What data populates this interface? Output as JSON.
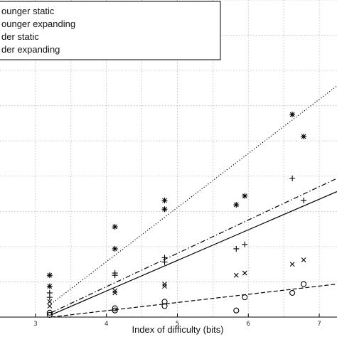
{
  "chart_data": {
    "type": "scatter",
    "title": "",
    "xlabel": "Index of difficulty (bits)",
    "ylabel": "",
    "xlim": [
      2.5,
      7.25
    ],
    "ylim": [
      0,
      7.2
    ],
    "x_ticks": [
      "3",
      "4",
      "5",
      "6",
      "7"
    ],
    "grid": true,
    "legend_placement": "top-left",
    "legend": [
      "ounger static",
      "ounger expanding",
      "der static",
      "der expanding"
    ],
    "series": [
      {
        "name": "ounger static",
        "marker": "x",
        "line_style": "solid",
        "points": [
          [
            3.2,
            0.25
          ],
          [
            3.2,
            0.35
          ],
          [
            4.12,
            0.55
          ],
          [
            4.12,
            0.6
          ],
          [
            4.82,
            0.7
          ],
          [
            4.82,
            0.75
          ],
          [
            5.83,
            0.95
          ],
          [
            5.95,
            1.0
          ],
          [
            6.62,
            1.2
          ],
          [
            6.78,
            1.3
          ]
        ],
        "fit": [
          [
            3.22,
            0.05
          ],
          [
            7.25,
            2.85
          ]
        ]
      },
      {
        "name": "ounger expanding",
        "marker": "plus",
        "line_style": "dashdot",
        "points": [
          [
            3.2,
            0.45
          ],
          [
            3.2,
            0.55
          ],
          [
            4.12,
            0.95
          ],
          [
            4.12,
            1.0
          ],
          [
            4.82,
            1.25
          ],
          [
            4.82,
            1.35
          ],
          [
            5.83,
            1.55
          ],
          [
            5.95,
            1.65
          ],
          [
            6.62,
            3.15
          ],
          [
            6.78,
            2.65
          ]
        ],
        "fit": [
          [
            3.22,
            0.1
          ],
          [
            7.25,
            3.15
          ]
        ]
      },
      {
        "name": "der static",
        "marker": "circle",
        "line_style": "dashed",
        "points": [
          [
            3.2,
            0.05
          ],
          [
            3.2,
            0.1
          ],
          [
            4.12,
            0.15
          ],
          [
            4.12,
            0.2
          ],
          [
            4.82,
            0.25
          ],
          [
            4.82,
            0.35
          ],
          [
            5.83,
            0.15
          ],
          [
            5.95,
            0.45
          ],
          [
            6.62,
            0.55
          ],
          [
            6.78,
            0.75
          ]
        ],
        "fit": [
          [
            3.22,
            0.0
          ],
          [
            7.25,
            0.75
          ]
        ]
      },
      {
        "name": "der expanding",
        "marker": "asterisk",
        "line_style": "dotted",
        "points": [
          [
            3.2,
            0.7
          ],
          [
            3.2,
            0.95
          ],
          [
            4.12,
            1.55
          ],
          [
            4.12,
            2.05
          ],
          [
            4.82,
            2.45
          ],
          [
            4.82,
            2.65
          ],
          [
            5.83,
            2.55
          ],
          [
            5.95,
            2.75
          ],
          [
            6.62,
            4.6
          ],
          [
            6.78,
            4.1
          ]
        ],
        "fit": [
          [
            3.22,
            0.3
          ],
          [
            7.25,
            5.25
          ]
        ]
      }
    ]
  }
}
